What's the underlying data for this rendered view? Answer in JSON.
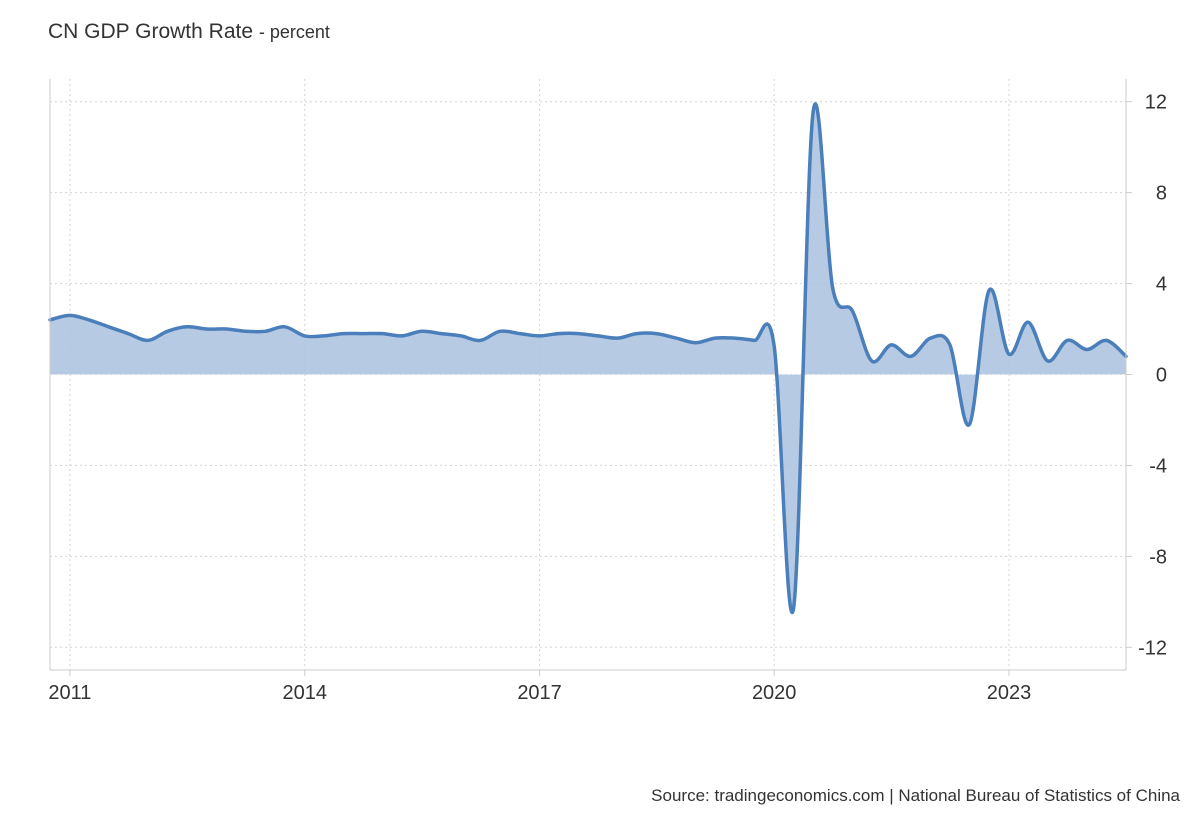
{
  "header": {
    "title": "CN GDP Growth Rate",
    "unit_label": "- percent"
  },
  "footer": {
    "source": "Source: tradingeconomics.com | National Bureau of Statistics of China"
  },
  "chart_data": {
    "type": "area",
    "title": "CN GDP Growth Rate",
    "subtitle": "- percent",
    "xlabel": "",
    "ylabel": "",
    "xlim": [
      "2010-09-30",
      "2024-06-30"
    ],
    "ylim": [
      -13,
      13
    ],
    "y_ticks": [
      12,
      8,
      4,
      0,
      -4,
      -8,
      -12
    ],
    "x_ticks": [
      {
        "date": "2011-01-01",
        "label": "2011"
      },
      {
        "date": "2014-01-01",
        "label": "2014"
      },
      {
        "date": "2017-01-01",
        "label": "2017"
      },
      {
        "date": "2020-01-01",
        "label": "2020"
      },
      {
        "date": "2023-01-01",
        "label": "2023"
      }
    ],
    "grid": true,
    "y_axis_position": "right",
    "colors": {
      "line": "#4a7fbb",
      "fill": "#a9c1de",
      "grid": "#d4d4d4",
      "axis": "#cccccc"
    },
    "series": [
      {
        "values": [
          {
            "x": "2010-09-30",
            "y": 2.4
          },
          {
            "x": "2010-12-31",
            "y": 2.6
          },
          {
            "x": "2011-03-31",
            "y": 2.4
          },
          {
            "x": "2011-06-30",
            "y": 2.1
          },
          {
            "x": "2011-09-30",
            "y": 1.8
          },
          {
            "x": "2011-12-31",
            "y": 1.5
          },
          {
            "x": "2012-03-31",
            "y": 1.9
          },
          {
            "x": "2012-06-30",
            "y": 2.1
          },
          {
            "x": "2012-09-30",
            "y": 2.0
          },
          {
            "x": "2012-12-31",
            "y": 2.0
          },
          {
            "x": "2013-03-31",
            "y": 1.9
          },
          {
            "x": "2013-06-30",
            "y": 1.9
          },
          {
            "x": "2013-09-30",
            "y": 2.1
          },
          {
            "x": "2013-12-31",
            "y": 1.7
          },
          {
            "x": "2014-03-31",
            "y": 1.7
          },
          {
            "x": "2014-06-30",
            "y": 1.8
          },
          {
            "x": "2014-09-30",
            "y": 1.8
          },
          {
            "x": "2014-12-31",
            "y": 1.8
          },
          {
            "x": "2015-03-31",
            "y": 1.7
          },
          {
            "x": "2015-06-30",
            "y": 1.9
          },
          {
            "x": "2015-09-30",
            "y": 1.8
          },
          {
            "x": "2015-12-31",
            "y": 1.7
          },
          {
            "x": "2016-03-31",
            "y": 1.5
          },
          {
            "x": "2016-06-30",
            "y": 1.9
          },
          {
            "x": "2016-09-30",
            "y": 1.8
          },
          {
            "x": "2016-12-31",
            "y": 1.7
          },
          {
            "x": "2017-03-31",
            "y": 1.8
          },
          {
            "x": "2017-06-30",
            "y": 1.8
          },
          {
            "x": "2017-09-30",
            "y": 1.7
          },
          {
            "x": "2017-12-31",
            "y": 1.6
          },
          {
            "x": "2018-03-31",
            "y": 1.8
          },
          {
            "x": "2018-06-30",
            "y": 1.8
          },
          {
            "x": "2018-09-30",
            "y": 1.6
          },
          {
            "x": "2018-12-31",
            "y": 1.4
          },
          {
            "x": "2019-03-31",
            "y": 1.6
          },
          {
            "x": "2019-06-30",
            "y": 1.6
          },
          {
            "x": "2019-09-30",
            "y": 1.5
          },
          {
            "x": "2019-12-31",
            "y": 1.3
          },
          {
            "x": "2020-03-31",
            "y": -10.3
          },
          {
            "x": "2020-06-30",
            "y": 11.5
          },
          {
            "x": "2020-09-30",
            "y": 3.8
          },
          {
            "x": "2020-12-31",
            "y": 2.8
          },
          {
            "x": "2021-03-31",
            "y": 0.6
          },
          {
            "x": "2021-06-30",
            "y": 1.3
          },
          {
            "x": "2021-09-30",
            "y": 0.8
          },
          {
            "x": "2021-12-31",
            "y": 1.6
          },
          {
            "x": "2022-03-31",
            "y": 1.3
          },
          {
            "x": "2022-06-30",
            "y": -2.2
          },
          {
            "x": "2022-09-30",
            "y": 3.7
          },
          {
            "x": "2022-12-31",
            "y": 0.9
          },
          {
            "x": "2023-03-31",
            "y": 2.3
          },
          {
            "x": "2023-06-30",
            "y": 0.6
          },
          {
            "x": "2023-09-30",
            "y": 1.5
          },
          {
            "x": "2023-12-31",
            "y": 1.1
          },
          {
            "x": "2024-03-31",
            "y": 1.5
          },
          {
            "x": "2024-06-30",
            "y": 0.8
          }
        ]
      }
    ]
  }
}
